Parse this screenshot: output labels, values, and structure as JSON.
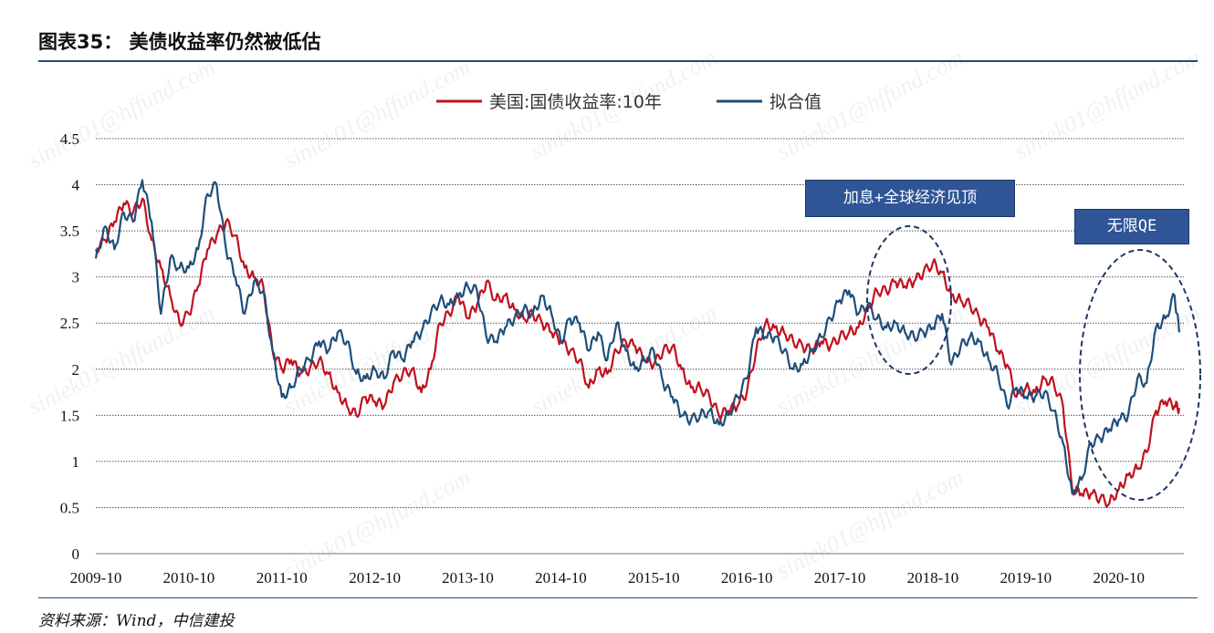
{
  "figure": {
    "title": "图表35：  美债收益率仍然被低估",
    "source": "资料来源：Wind，中信建投"
  },
  "annotations": {
    "box1": "加息+全球经济见顶",
    "box2": "无限QE"
  },
  "watermark": "siniek01@hffund.com",
  "colors": {
    "red": "#c0111f",
    "blue": "#1f4e79",
    "annot": "#2f5597"
  },
  "chart_data": {
    "type": "line",
    "title": "",
    "xlabel": "",
    "ylabel": "",
    "ylim": [
      0,
      4.5
    ],
    "yticks": [
      "4.5",
      "4",
      "3.5",
      "3",
      "2.5",
      "2",
      "1.5",
      "1",
      "0.5",
      "0"
    ],
    "xlim": [
      2009.75,
      2021.45
    ],
    "xticks": [
      "2009-10",
      "2010-10",
      "2011-10",
      "2012-10",
      "2013-10",
      "2014-10",
      "2015-10",
      "2016-10",
      "2017-10",
      "2018-10",
      "2019-10",
      "2020-10"
    ],
    "xtick_values": [
      2009.75,
      2010.75,
      2011.75,
      2012.75,
      2013.75,
      2014.75,
      2015.75,
      2016.75,
      2017.75,
      2018.75,
      2019.75,
      2020.75
    ],
    "legend_position": "top-center",
    "series": [
      {
        "name": "美国:国债收益率:10年",
        "color": "#c0111f",
        "x": [
          2009.75,
          2009.85,
          2009.95,
          2010.05,
          2010.15,
          2010.25,
          2010.35,
          2010.45,
          2010.55,
          2010.65,
          2010.75,
          2010.85,
          2010.95,
          2011.05,
          2011.15,
          2011.25,
          2011.35,
          2011.45,
          2011.55,
          2011.65,
          2011.75,
          2011.85,
          2011.95,
          2012.05,
          2012.15,
          2012.25,
          2012.35,
          2012.45,
          2012.55,
          2012.65,
          2012.75,
          2012.85,
          2012.95,
          2013.05,
          2013.15,
          2013.25,
          2013.35,
          2013.45,
          2013.55,
          2013.65,
          2013.75,
          2013.85,
          2013.95,
          2014.05,
          2014.15,
          2014.25,
          2014.35,
          2014.45,
          2014.55,
          2014.65,
          2014.75,
          2014.85,
          2014.95,
          2015.05,
          2015.15,
          2015.25,
          2015.35,
          2015.45,
          2015.55,
          2015.65,
          2015.75,
          2015.85,
          2015.95,
          2016.05,
          2016.15,
          2016.25,
          2016.35,
          2016.45,
          2016.55,
          2016.65,
          2016.75,
          2016.85,
          2016.95,
          2017.05,
          2017.15,
          2017.25,
          2017.35,
          2017.45,
          2017.55,
          2017.65,
          2017.75,
          2017.85,
          2017.95,
          2018.05,
          2018.15,
          2018.25,
          2018.35,
          2018.45,
          2018.55,
          2018.65,
          2018.75,
          2018.85,
          2018.95,
          2019.05,
          2019.15,
          2019.25,
          2019.35,
          2019.45,
          2019.55,
          2019.65,
          2019.75,
          2019.85,
          2019.95,
          2020.05,
          2020.15,
          2020.25,
          2020.35,
          2020.45,
          2020.55,
          2020.65,
          2020.75,
          2020.85,
          2020.95,
          2021.05,
          2021.15,
          2021.25,
          2021.35,
          2021.4
        ],
        "values": [
          3.3,
          3.4,
          3.6,
          3.8,
          3.7,
          3.85,
          3.4,
          3.1,
          2.8,
          2.5,
          2.6,
          2.9,
          3.3,
          3.45,
          3.6,
          3.45,
          3.1,
          3.0,
          2.9,
          2.2,
          2.0,
          2.1,
          1.95,
          2.0,
          2.1,
          1.95,
          1.75,
          1.6,
          1.5,
          1.7,
          1.65,
          1.6,
          1.85,
          1.95,
          2.0,
          1.75,
          2.0,
          2.5,
          2.6,
          2.8,
          2.55,
          2.7,
          2.95,
          2.75,
          2.8,
          2.65,
          2.55,
          2.6,
          2.5,
          2.4,
          2.3,
          2.2,
          2.1,
          1.8,
          2.0,
          1.95,
          2.2,
          2.3,
          2.25,
          2.1,
          2.05,
          2.2,
          2.25,
          2.0,
          1.8,
          1.8,
          1.7,
          1.5,
          1.55,
          1.6,
          1.75,
          2.2,
          2.5,
          2.45,
          2.4,
          2.3,
          2.25,
          2.2,
          2.3,
          2.25,
          2.35,
          2.4,
          2.45,
          2.65,
          2.85,
          2.85,
          2.95,
          2.9,
          2.95,
          3.05,
          3.15,
          3.05,
          2.8,
          2.75,
          2.7,
          2.55,
          2.45,
          2.2,
          2.05,
          1.7,
          1.8,
          1.75,
          1.9,
          1.85,
          1.6,
          0.7,
          0.65,
          0.65,
          0.6,
          0.55,
          0.7,
          0.85,
          0.92,
          1.1,
          1.55,
          1.65,
          1.6,
          1.58
        ]
      },
      {
        "name": "拟合值",
        "color": "#1f4e79",
        "x": [
          2009.75,
          2009.85,
          2009.95,
          2010.05,
          2010.15,
          2010.25,
          2010.35,
          2010.45,
          2010.55,
          2010.65,
          2010.75,
          2010.85,
          2010.95,
          2011.05,
          2011.15,
          2011.25,
          2011.35,
          2011.45,
          2011.55,
          2011.65,
          2011.75,
          2011.85,
          2011.95,
          2012.05,
          2012.15,
          2012.25,
          2012.35,
          2012.45,
          2012.55,
          2012.65,
          2012.75,
          2012.85,
          2012.95,
          2013.05,
          2013.15,
          2013.25,
          2013.35,
          2013.45,
          2013.55,
          2013.65,
          2013.75,
          2013.85,
          2013.95,
          2014.05,
          2014.15,
          2014.25,
          2014.35,
          2014.45,
          2014.55,
          2014.65,
          2014.75,
          2014.85,
          2014.95,
          2015.05,
          2015.15,
          2015.25,
          2015.35,
          2015.45,
          2015.55,
          2015.65,
          2015.75,
          2015.85,
          2015.95,
          2016.05,
          2016.15,
          2016.25,
          2016.35,
          2016.45,
          2016.55,
          2016.65,
          2016.75,
          2016.85,
          2016.95,
          2017.05,
          2017.15,
          2017.25,
          2017.35,
          2017.45,
          2017.55,
          2017.65,
          2017.75,
          2017.85,
          2017.95,
          2018.05,
          2018.15,
          2018.25,
          2018.35,
          2018.45,
          2018.55,
          2018.65,
          2018.75,
          2018.85,
          2018.95,
          2019.05,
          2019.15,
          2019.25,
          2019.35,
          2019.45,
          2019.55,
          2019.65,
          2019.75,
          2019.85,
          2019.95,
          2020.05,
          2020.15,
          2020.25,
          2020.35,
          2020.45,
          2020.55,
          2020.65,
          2020.75,
          2020.85,
          2020.95,
          2021.05,
          2021.15,
          2021.25,
          2021.35,
          2021.4
        ],
        "values": [
          3.2,
          3.55,
          3.3,
          3.7,
          3.6,
          4.05,
          3.6,
          2.6,
          3.2,
          3.1,
          3.1,
          3.3,
          3.9,
          4.0,
          3.3,
          3.0,
          2.6,
          2.95,
          2.85,
          2.2,
          1.7,
          1.8,
          2.0,
          2.1,
          2.3,
          2.2,
          2.4,
          2.3,
          1.95,
          1.9,
          2.0,
          1.9,
          2.2,
          2.1,
          2.3,
          2.4,
          2.6,
          2.75,
          2.7,
          2.8,
          2.9,
          2.85,
          2.35,
          2.3,
          2.45,
          2.55,
          2.65,
          2.6,
          2.8,
          2.6,
          2.3,
          2.55,
          2.5,
          2.2,
          2.4,
          2.1,
          2.5,
          2.2,
          2.0,
          2.1,
          2.2,
          1.85,
          1.7,
          1.5,
          1.45,
          1.5,
          1.55,
          1.4,
          1.5,
          1.7,
          1.9,
          2.45,
          2.35,
          2.35,
          2.2,
          2.0,
          2.05,
          2.2,
          2.35,
          2.55,
          2.75,
          2.85,
          2.6,
          2.7,
          2.55,
          2.45,
          2.5,
          2.4,
          2.35,
          2.4,
          2.45,
          2.6,
          2.05,
          2.25,
          2.35,
          2.3,
          2.1,
          1.95,
          1.6,
          1.8,
          1.7,
          1.7,
          1.75,
          1.55,
          1.2,
          0.65,
          0.8,
          1.2,
          1.25,
          1.35,
          1.45,
          1.5,
          1.9,
          1.85,
          2.45,
          2.55,
          2.8,
          2.4
        ]
      }
    ]
  }
}
